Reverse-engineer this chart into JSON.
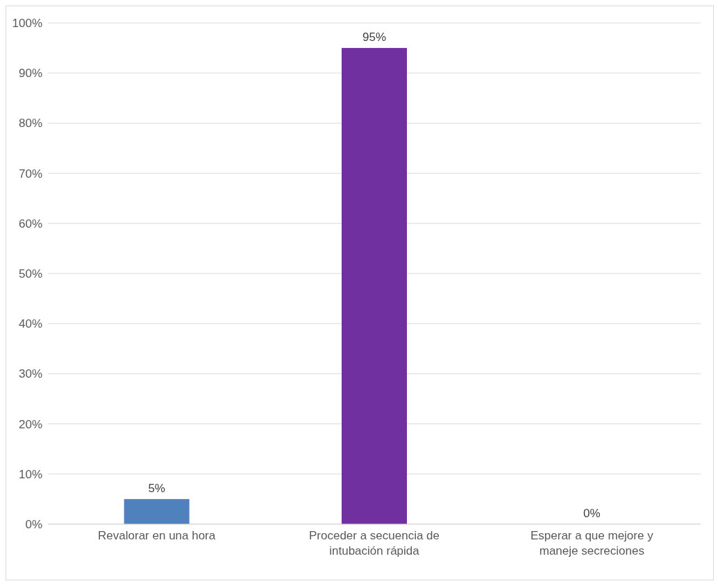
{
  "chart_data": {
    "type": "bar",
    "categories": [
      "Revalorar en una hora",
      "Proceder a secuencia de intubación rápida",
      "Esperar a que mejore y maneje secreciones"
    ],
    "values": [
      5,
      95,
      0
    ],
    "colors": [
      "#4f81bd",
      "#7030a0",
      "#4f81bd"
    ],
    "value_labels": [
      "5%",
      "95%",
      "0%"
    ],
    "ylim": [
      0,
      100
    ],
    "yticks": [
      {
        "value": 0,
        "label": "0%"
      },
      {
        "value": 10,
        "label": "10%"
      },
      {
        "value": 20,
        "label": "20%"
      },
      {
        "value": 30,
        "label": "30%"
      },
      {
        "value": 40,
        "label": "40%"
      },
      {
        "value": 50,
        "label": "50%"
      },
      {
        "value": 60,
        "label": "60%"
      },
      {
        "value": 70,
        "label": "70%"
      },
      {
        "value": 80,
        "label": "80%"
      },
      {
        "value": 90,
        "label": "90%"
      },
      {
        "value": 100,
        "label": "100%"
      }
    ],
    "grid": "y",
    "legend": false
  }
}
